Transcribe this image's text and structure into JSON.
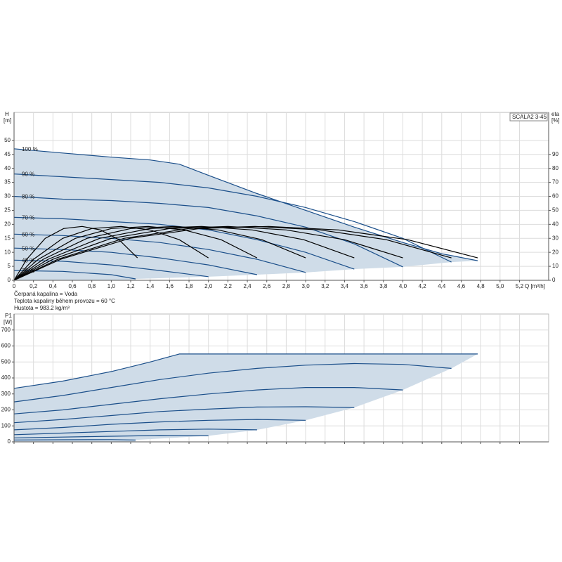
{
  "chart_data": [
    {
      "type": "line",
      "title": "SCALA2 3-45",
      "ylabel": "H",
      "yunit": "[m]",
      "y2label": "eta",
      "y2unit": "[%]",
      "xlabel": "Q [m³/h]",
      "notes": [
        "Čerpaná kapalina = Voda",
        "Teplota kapaliny během provozu = 60 °C",
        "Hustota = 983.2 kg/m³"
      ],
      "xlim": [
        0,
        5.5
      ],
      "ylim": [
        0,
        60
      ],
      "y2lim": [
        0,
        120
      ],
      "grid": true,
      "fill_color": "#cfdce8",
      "xticks": [
        0,
        {
          "value": 0.2,
          "label": "0,2"
        },
        {
          "value": 0.4,
          "label": "0,4"
        },
        {
          "value": 0.6,
          "label": "0,6"
        },
        {
          "value": 0.8,
          "label": "0,8"
        },
        {
          "value": 1.0,
          "label": "1,0"
        },
        {
          "value": 1.2,
          "label": "1,2"
        },
        {
          "value": 1.4,
          "label": "1,4"
        },
        {
          "value": 1.6,
          "label": "1,6"
        },
        {
          "value": 1.8,
          "label": "1,8"
        },
        {
          "value": 2.0,
          "label": "2,0"
        },
        {
          "value": 2.2,
          "label": "2,2"
        },
        {
          "value": 2.4,
          "label": "2,4"
        },
        {
          "value": 2.6,
          "label": "2,6"
        },
        {
          "value": 2.8,
          "label": "2,8"
        },
        {
          "value": 3.0,
          "label": "3,0"
        },
        {
          "value": 3.2,
          "label": "3,2"
        },
        {
          "value": 3.4,
          "label": "3,4"
        },
        {
          "value": 3.6,
          "label": "3,6"
        },
        {
          "value": 3.8,
          "label": "3,8"
        },
        {
          "value": 4.0,
          "label": "4,0"
        },
        {
          "value": 4.2,
          "label": "4,2"
        },
        {
          "value": 4.4,
          "label": "4,4"
        },
        {
          "value": 4.6,
          "label": "4,6"
        },
        {
          "value": 4.8,
          "label": "4,8"
        },
        {
          "value": 5.0,
          "label": "5,0"
        },
        {
          "value": 5.2,
          "label": "5,2"
        }
      ],
      "yticks": [
        0,
        5,
        10,
        15,
        20,
        25,
        30,
        35,
        40,
        45,
        50
      ],
      "y2ticks": [
        0,
        10,
        20,
        30,
        40,
        50,
        60,
        70,
        80,
        90
      ],
      "series": [
        {
          "name": "100 %",
          "color": "#1b4f8a",
          "x": [
            0,
            0.5,
            1.0,
            1.4,
            1.7,
            2.0,
            2.5,
            3.0,
            3.5,
            4.0,
            4.4,
            4.77
          ],
          "values": [
            47,
            45.5,
            44,
            43,
            41.5,
            37.5,
            31,
            25,
            19,
            13.5,
            9.5,
            7
          ]
        },
        {
          "name": "90 %",
          "color": "#1b4f8a",
          "x": [
            0,
            0.5,
            1.0,
            1.5,
            2.0,
            2.5,
            3.0,
            3.5,
            4.0,
            4.5
          ],
          "values": [
            38,
            37,
            36,
            35,
            33,
            30,
            26,
            21,
            15,
            6.5
          ]
        },
        {
          "name": "80 %",
          "color": "#1b4f8a",
          "x": [
            0,
            0.5,
            1.0,
            1.5,
            2.0,
            2.5,
            3.0,
            3.5,
            4.0
          ],
          "values": [
            30,
            29,
            28.5,
            27.5,
            26,
            23,
            19,
            13,
            4.8
          ]
        },
        {
          "name": "70 %",
          "color": "#1b4f8a",
          "x": [
            0,
            0.5,
            1.0,
            1.5,
            2.0,
            2.5,
            3.0,
            3.5
          ],
          "values": [
            22.5,
            22,
            21,
            20,
            18,
            14.5,
            10,
            4
          ]
        },
        {
          "name": "60 %",
          "color": "#1b4f8a",
          "x": [
            0,
            0.5,
            1.0,
            1.5,
            2.0,
            2.5,
            3.0
          ],
          "values": [
            16.5,
            16,
            15,
            13.5,
            11,
            7.5,
            2.8
          ]
        },
        {
          "name": "50 %",
          "color": "#1b4f8a",
          "x": [
            0,
            0.5,
            1.0,
            1.5,
            2.0,
            2.5
          ],
          "values": [
            11.5,
            11,
            10,
            8,
            5.5,
            2
          ]
        },
        {
          "name": "40 %",
          "color": "#1b4f8a",
          "x": [
            0,
            0.5,
            1.0,
            1.5,
            2.0
          ],
          "values": [
            7.2,
            6.8,
            5.5,
            3.5,
            1.3
          ]
        },
        {
          "name": "30 %",
          "color": "#1b4f8a",
          "x": [
            0,
            0.5,
            1.0,
            1.25
          ],
          "values": [
            3.5,
            3.2,
            2,
            0.5
          ]
        },
        {
          "axis": "y2",
          "color": "#000000",
          "x": [
            0,
            0.13,
            0.32,
            0.51,
            0.7,
            0.89,
            1.08,
            1.27
          ],
          "values": [
            0,
            15,
            30,
            37,
            38.5,
            36,
            29,
            16
          ]
        },
        {
          "axis": "y2",
          "color": "#000000",
          "x": [
            0,
            0.2,
            0.5,
            0.8,
            1.1,
            1.4,
            1.7,
            2.0
          ],
          "values": [
            0,
            15,
            30,
            37,
            38.5,
            36,
            29,
            16
          ]
        },
        {
          "axis": "y2",
          "color": "#000000",
          "x": [
            0,
            0.25,
            0.63,
            1.0,
            1.38,
            1.75,
            2.13,
            2.5
          ],
          "values": [
            0,
            15,
            30,
            37,
            38.5,
            36,
            29,
            16
          ]
        },
        {
          "axis": "y2",
          "color": "#000000",
          "x": [
            0,
            0.3,
            0.75,
            1.2,
            1.65,
            2.1,
            2.55,
            3.0
          ],
          "values": [
            0,
            15,
            30,
            37,
            38.5,
            36,
            29,
            16
          ]
        },
        {
          "axis": "y2",
          "color": "#000000",
          "x": [
            0,
            0.35,
            0.88,
            1.4,
            1.93,
            2.45,
            2.98,
            3.5
          ],
          "values": [
            0,
            15,
            30,
            37,
            38.5,
            36,
            29,
            16
          ]
        },
        {
          "axis": "y2",
          "color": "#000000",
          "x": [
            0,
            0.4,
            1.0,
            1.6,
            2.2,
            2.8,
            3.4,
            4.0
          ],
          "values": [
            0,
            15,
            30,
            37,
            38.5,
            36,
            29,
            16
          ]
        },
        {
          "axis": "y2",
          "color": "#000000",
          "x": [
            0,
            0.45,
            1.13,
            1.8,
            2.48,
            3.15,
            3.83,
            4.5
          ],
          "values": [
            0,
            15,
            30,
            37,
            38.5,
            36,
            29,
            16
          ]
        },
        {
          "axis": "y2",
          "color": "#000000",
          "x": [
            0,
            0.48,
            1.19,
            1.91,
            2.62,
            3.34,
            4.05,
            4.77
          ],
          "values": [
            0,
            15,
            30,
            37,
            38.5,
            36,
            29,
            16
          ]
        }
      ]
    },
    {
      "type": "line",
      "ylabel": "P1",
      "yunit": "[W]",
      "xlim": [
        0,
        5.5
      ],
      "ylim": [
        0,
        800
      ],
      "grid": true,
      "fill_color": "#cfdce8",
      "xticks": [
        0,
        0.2,
        0.4,
        0.6,
        0.8,
        1.0,
        1.2,
        1.4,
        1.6,
        1.8,
        2.0,
        2.2,
        2.4,
        2.6,
        2.8,
        3.0,
        3.2,
        3.4,
        3.6,
        3.8,
        4.0,
        4.2,
        4.4,
        4.6,
        4.8,
        5.0,
        5.2
      ],
      "yticks": [
        0,
        100,
        200,
        300,
        400,
        500,
        600,
        700
      ],
      "series": [
        {
          "color": "#1b4f8a",
          "x": [
            0,
            0.5,
            1.0,
            1.4,
            1.7,
            2.0,
            3.0,
            4.0,
            4.77
          ],
          "values": [
            335,
            380,
            440,
            500,
            550,
            550,
            550,
            550,
            550
          ]
        },
        {
          "color": "#1b4f8a",
          "x": [
            0,
            0.5,
            1.0,
            1.5,
            2.0,
            2.5,
            3.0,
            3.5,
            4.0,
            4.5
          ],
          "values": [
            250,
            290,
            340,
            390,
            430,
            460,
            480,
            490,
            485,
            460
          ]
        },
        {
          "color": "#1b4f8a",
          "x": [
            0,
            0.5,
            1.0,
            1.5,
            2.0,
            2.5,
            3.0,
            3.5,
            4.0
          ],
          "values": [
            175,
            200,
            235,
            270,
            300,
            325,
            340,
            340,
            325
          ]
        },
        {
          "color": "#1b4f8a",
          "x": [
            0,
            0.5,
            1.0,
            1.5,
            2.0,
            2.5,
            3.0,
            3.5
          ],
          "values": [
            120,
            140,
            165,
            190,
            205,
            218,
            220,
            215
          ]
        },
        {
          "color": "#1b4f8a",
          "x": [
            0,
            0.5,
            1.0,
            1.5,
            2.0,
            2.5,
            3.0
          ],
          "values": [
            75,
            90,
            110,
            125,
            135,
            140,
            135
          ]
        },
        {
          "color": "#1b4f8a",
          "x": [
            0,
            0.5,
            1.0,
            1.5,
            2.0,
            2.5
          ],
          "values": [
            45,
            55,
            65,
            75,
            80,
            75
          ]
        },
        {
          "color": "#1b4f8a",
          "x": [
            0,
            0.5,
            1.0,
            1.5,
            2.0
          ],
          "values": [
            25,
            30,
            35,
            40,
            38
          ]
        },
        {
          "color": "#1b4f8a",
          "x": [
            0,
            0.5,
            1.0,
            1.25
          ],
          "values": [
            12,
            13,
            14,
            12
          ]
        }
      ]
    }
  ]
}
